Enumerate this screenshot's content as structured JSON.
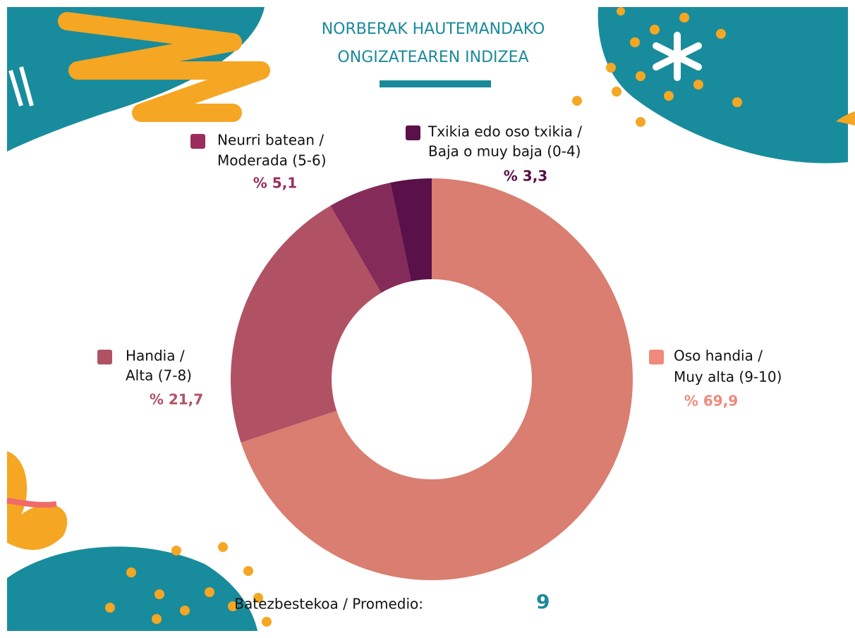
{
  "chart_data": {
    "type": "donut",
    "title": [
      "NORBERAK HAUTEMANDAKO",
      "ONGIZATEAREN INDIZEA"
    ],
    "categories": [
      [
        "Oso handia /",
        "Muy alta (9-10)"
      ],
      [
        "Handia /",
        "Alta (7-8)"
      ],
      [
        "Neurri batean /",
        "Moderada (5-6)"
      ],
      [
        "Txikia edo oso txikia /",
        "Baja o muy baja (0-4)"
      ]
    ],
    "values": [
      69.9,
      21.7,
      5.1,
      3.3
    ],
    "value_labels": [
      "% 69,9",
      "% 21,7",
      "% 5,1",
      "% 3,3"
    ],
    "colors": [
      "#d97e70",
      "#b05264",
      "#852b59",
      "#5a1048"
    ],
    "legend_colors": [
      "#f08a7c",
      "#b05264",
      "#9a2d5e",
      "#5a1048"
    ],
    "average_label": "Batezbestekoa / Promedio:",
    "average": 9
  }
}
